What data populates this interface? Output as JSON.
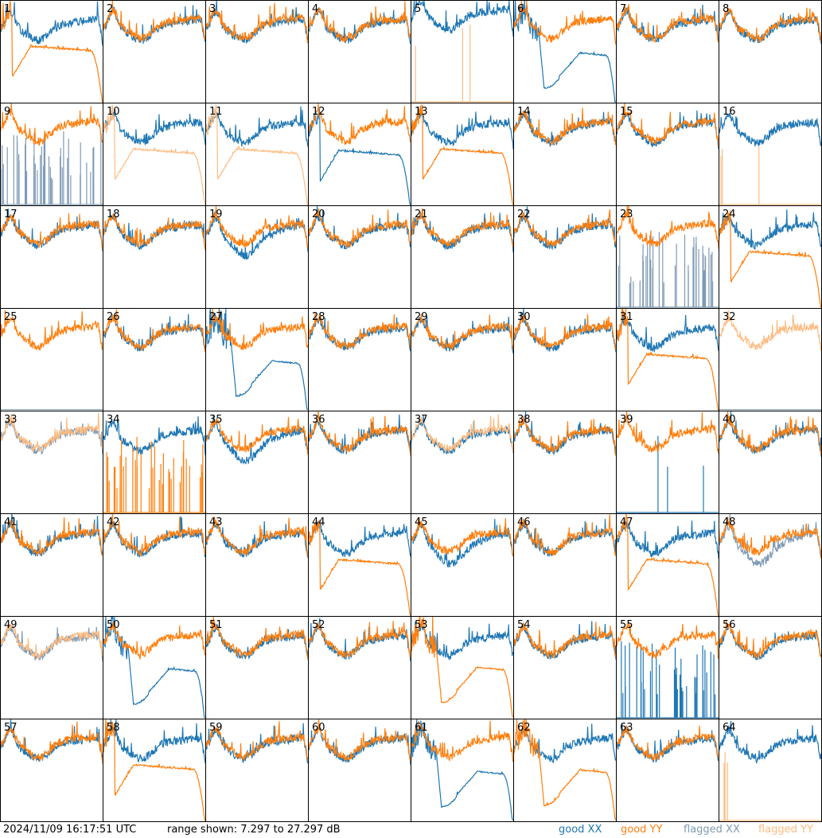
{
  "chart_data": {
    "type": "line",
    "title": "",
    "timestamp": "2024/11/09 16:17:51 UTC",
    "range_text": "range shown: 7.297 to 27.297 dB",
    "ylim": [
      7.297,
      27.297
    ],
    "grid_layout": "8x8",
    "legend": [
      {
        "name": "good XX",
        "color": "#1f77b4"
      },
      {
        "name": "good YY",
        "color": "#ff7f0e"
      },
      {
        "name": "flagged XX",
        "color": "#7f9bb5"
      },
      {
        "name": "flagged YY",
        "color": "#ffbb80"
      }
    ],
    "legend_placement": "bottom-right",
    "panels": [
      {
        "n": "1",
        "xx": [
          "good",
          "normal"
        ],
        "yy": [
          "good",
          "low"
        ]
      },
      {
        "n": "2",
        "xx": [
          "good",
          "normal"
        ],
        "yy": [
          "good",
          "normal"
        ]
      },
      {
        "n": "3",
        "xx": [
          "good",
          "normal"
        ],
        "yy": [
          "good",
          "normal"
        ]
      },
      {
        "n": "4",
        "xx": [
          "good",
          "normal"
        ],
        "yy": [
          "good",
          "normal"
        ]
      },
      {
        "n": "5",
        "xx": [
          "good",
          "high"
        ],
        "yy": [
          "flagged",
          "sparse"
        ]
      },
      {
        "n": "6",
        "xx": [
          "good",
          "dip"
        ],
        "yy": [
          "good",
          "normal"
        ]
      },
      {
        "n": "7",
        "xx": [
          "good",
          "normal"
        ],
        "yy": [
          "good",
          "normal"
        ]
      },
      {
        "n": "8",
        "xx": [
          "good",
          "normal"
        ],
        "yy": [
          "good",
          "normal"
        ]
      },
      {
        "n": "9",
        "xx": [
          "flagged",
          "spikes"
        ],
        "yy": [
          "good",
          "normal"
        ]
      },
      {
        "n": "10",
        "xx": [
          "good",
          "normal"
        ],
        "yy": [
          "flagged",
          "low"
        ]
      },
      {
        "n": "11",
        "xx": [
          "good",
          "normal"
        ],
        "yy": [
          "flagged",
          "low"
        ]
      },
      {
        "n": "12",
        "xx": [
          "good",
          "low"
        ],
        "yy": [
          "good",
          "normal"
        ]
      },
      {
        "n": "13",
        "xx": [
          "good",
          "normal"
        ],
        "yy": [
          "good",
          "low"
        ]
      },
      {
        "n": "14",
        "xx": [
          "good",
          "normal"
        ],
        "yy": [
          "good",
          "normal"
        ]
      },
      {
        "n": "15",
        "xx": [
          "good",
          "normal"
        ],
        "yy": [
          "good",
          "normal"
        ]
      },
      {
        "n": "16",
        "xx": [
          "good",
          "normal"
        ],
        "yy": [
          "flagged",
          "sparse"
        ]
      },
      {
        "n": "17",
        "xx": [
          "good",
          "normal"
        ],
        "yy": [
          "good",
          "normal"
        ]
      },
      {
        "n": "18",
        "xx": [
          "good",
          "normal"
        ],
        "yy": [
          "good",
          "normal"
        ]
      },
      {
        "n": "19",
        "xx": [
          "good",
          "lower"
        ],
        "yy": [
          "good",
          "normal"
        ]
      },
      {
        "n": "20",
        "xx": [
          "good",
          "normal"
        ],
        "yy": [
          "good",
          "normal"
        ]
      },
      {
        "n": "21",
        "xx": [
          "good",
          "normal"
        ],
        "yy": [
          "good",
          "normal"
        ]
      },
      {
        "n": "22",
        "xx": [
          "good",
          "normal"
        ],
        "yy": [
          "good",
          "normal"
        ]
      },
      {
        "n": "23",
        "xx": [
          "flagged",
          "spikes"
        ],
        "yy": [
          "good",
          "normal"
        ]
      },
      {
        "n": "24",
        "xx": [
          "good",
          "normal"
        ],
        "yy": [
          "good",
          "low"
        ]
      },
      {
        "n": "25",
        "xx": [
          "flagged",
          "flat"
        ],
        "yy": [
          "good",
          "normal"
        ]
      },
      {
        "n": "26",
        "xx": [
          "good",
          "normal"
        ],
        "yy": [
          "good",
          "normal"
        ]
      },
      {
        "n": "27",
        "xx": [
          "good",
          "dip"
        ],
        "yy": [
          "good",
          "normal"
        ]
      },
      {
        "n": "28",
        "xx": [
          "good",
          "normal"
        ],
        "yy": [
          "good",
          "normal"
        ]
      },
      {
        "n": "29",
        "xx": [
          "good",
          "normal"
        ],
        "yy": [
          "good",
          "normal"
        ]
      },
      {
        "n": "30",
        "xx": [
          "good",
          "normal"
        ],
        "yy": [
          "good",
          "normal"
        ]
      },
      {
        "n": "31",
        "xx": [
          "good",
          "normal"
        ],
        "yy": [
          "good",
          "low"
        ]
      },
      {
        "n": "32",
        "xx": [
          "flagged",
          "flat"
        ],
        "yy": [
          "flagged",
          "normal"
        ]
      },
      {
        "n": "33",
        "xx": [
          "flagged",
          "normal"
        ],
        "yy": [
          "flagged",
          "normal"
        ]
      },
      {
        "n": "34",
        "xx": [
          "good",
          "normal"
        ],
        "yy": [
          "good",
          "spikes"
        ]
      },
      {
        "n": "35",
        "xx": [
          "good",
          "lower"
        ],
        "yy": [
          "good",
          "normal"
        ]
      },
      {
        "n": "36",
        "xx": [
          "good",
          "normal"
        ],
        "yy": [
          "good",
          "normal"
        ]
      },
      {
        "n": "37",
        "xx": [
          "good",
          "normal"
        ],
        "yy": [
          "flagged",
          "normal"
        ]
      },
      {
        "n": "38",
        "xx": [
          "good",
          "normal"
        ],
        "yy": [
          "good",
          "normal"
        ]
      },
      {
        "n": "39",
        "xx": [
          "good",
          "sparse"
        ],
        "yy": [
          "good",
          "normal"
        ]
      },
      {
        "n": "40",
        "xx": [
          "good",
          "normal"
        ],
        "yy": [
          "good",
          "normal"
        ]
      },
      {
        "n": "41",
        "xx": [
          "good",
          "normal"
        ],
        "yy": [
          "good",
          "normal"
        ]
      },
      {
        "n": "42",
        "xx": [
          "good",
          "normal"
        ],
        "yy": [
          "good",
          "normal"
        ]
      },
      {
        "n": "43",
        "xx": [
          "good",
          "normal"
        ],
        "yy": [
          "good",
          "normal"
        ]
      },
      {
        "n": "44",
        "xx": [
          "good",
          "normal"
        ],
        "yy": [
          "good",
          "low"
        ]
      },
      {
        "n": "45",
        "xx": [
          "good",
          "lower"
        ],
        "yy": [
          "good",
          "normal"
        ]
      },
      {
        "n": "46",
        "xx": [
          "good",
          "normal"
        ],
        "yy": [
          "good",
          "normal"
        ]
      },
      {
        "n": "47",
        "xx": [
          "good",
          "normal"
        ],
        "yy": [
          "good",
          "low"
        ]
      },
      {
        "n": "48",
        "xx": [
          "flagged",
          "lower"
        ],
        "yy": [
          "good",
          "normal"
        ]
      },
      {
        "n": "49",
        "xx": [
          "flagged",
          "normal"
        ],
        "yy": [
          "flagged",
          "normal"
        ]
      },
      {
        "n": "50",
        "xx": [
          "good",
          "dip"
        ],
        "yy": [
          "good",
          "normal"
        ]
      },
      {
        "n": "51",
        "xx": [
          "good",
          "normal"
        ],
        "yy": [
          "good",
          "normal"
        ]
      },
      {
        "n": "52",
        "xx": [
          "good",
          "normal"
        ],
        "yy": [
          "good",
          "normal"
        ]
      },
      {
        "n": "53",
        "xx": [
          "good",
          "normal"
        ],
        "yy": [
          "good",
          "dip"
        ]
      },
      {
        "n": "54",
        "xx": [
          "good",
          "normal"
        ],
        "yy": [
          "good",
          "normal"
        ]
      },
      {
        "n": "55",
        "xx": [
          "good",
          "spikes"
        ],
        "yy": [
          "good",
          "normal"
        ]
      },
      {
        "n": "56",
        "xx": [
          "good",
          "normal"
        ],
        "yy": [
          "good",
          "normal"
        ]
      },
      {
        "n": "57",
        "xx": [
          "good",
          "normal"
        ],
        "yy": [
          "good",
          "normal"
        ]
      },
      {
        "n": "58",
        "xx": [
          "good",
          "normal"
        ],
        "yy": [
          "good",
          "low"
        ]
      },
      {
        "n": "59",
        "xx": [
          "good",
          "normal"
        ],
        "yy": [
          "good",
          "normal"
        ]
      },
      {
        "n": "60",
        "xx": [
          "good",
          "normal"
        ],
        "yy": [
          "good",
          "normal"
        ]
      },
      {
        "n": "61",
        "xx": [
          "good",
          "dip"
        ],
        "yy": [
          "good",
          "normal"
        ]
      },
      {
        "n": "62",
        "xx": [
          "good",
          "normal"
        ],
        "yy": [
          "good",
          "dip"
        ]
      },
      {
        "n": "63",
        "xx": [
          "good",
          "normal"
        ],
        "yy": [
          "good",
          "normal"
        ]
      },
      {
        "n": "64",
        "xx": [
          "good",
          "normal"
        ],
        "yy": [
          "flagged",
          "sparse"
        ]
      }
    ]
  }
}
